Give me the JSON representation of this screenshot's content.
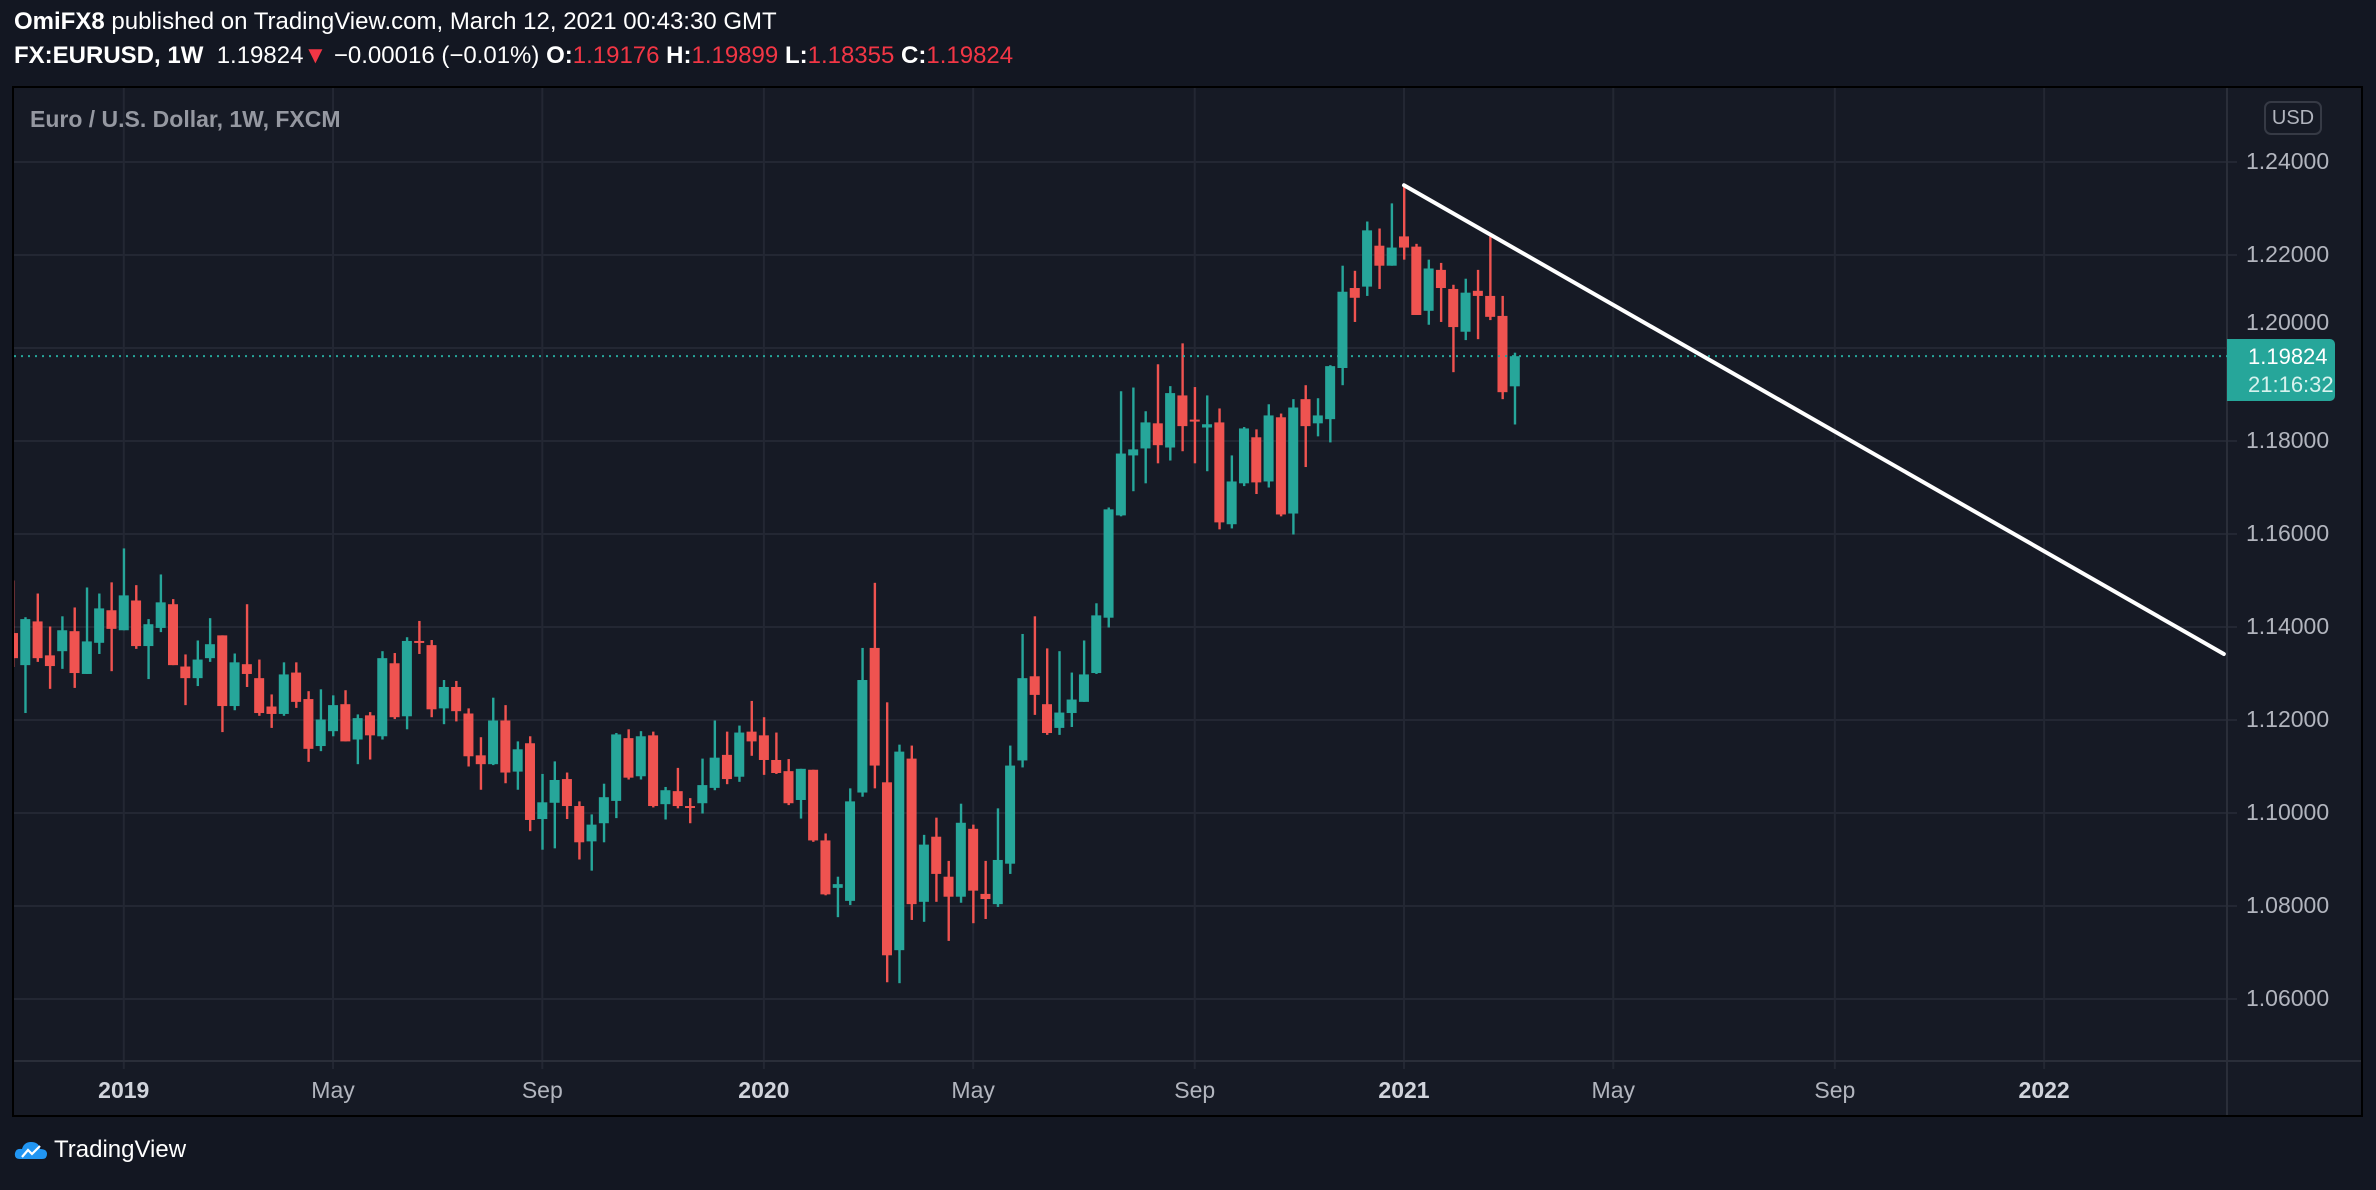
{
  "header": {
    "author": "OmiFX8",
    "published": "published on TradingView.com, March 12, 2021 00:43:30 GMT",
    "symbol": "FX:EURUSD, 1W",
    "last": "1.19824",
    "change": "−0.00016 (−0.01%)",
    "o_label": "O:",
    "o": "1.19176",
    "h_label": "H:",
    "h": "1.19899",
    "l_label": "L:",
    "l": "1.18355",
    "c_label": "C:",
    "c": "1.19824"
  },
  "legend": "Euro / U.S. Dollar, 1W, FXCM",
  "currency": "USD",
  "last_price_label": "1.19824",
  "countdown": "21:16:32",
  "brand": "TradingView",
  "colors": {
    "up": "#26a69a",
    "down": "#ef5350",
    "bg": "#161a25",
    "grid": "#232733",
    "trendline": "#ffffff"
  },
  "chart_data": {
    "type": "candlestick",
    "title": "Euro / U.S. Dollar, 1W, FXCM",
    "ylabel": "USD",
    "ylim": [
      1.05,
      1.255
    ],
    "grid": true,
    "y_ticks": [
      "1.24000",
      "1.22000",
      "1.20000",
      "1.18000",
      "1.16000",
      "1.14000",
      "1.12000",
      "1.10000",
      "1.08000",
      "1.06000"
    ],
    "x_ticks": [
      {
        "label": "2019",
        "bar": 10,
        "year": true
      },
      {
        "label": "May",
        "bar": 27
      },
      {
        "label": "Sep",
        "bar": 44
      },
      {
        "label": "2020",
        "bar": 62,
        "year": true
      },
      {
        "label": "May",
        "bar": 79
      },
      {
        "label": "Sep",
        "bar": 97
      },
      {
        "label": "2021",
        "bar": 114,
        "year": true
      },
      {
        "label": "May",
        "bar": 131
      },
      {
        "label": "Sep",
        "bar": 149
      },
      {
        "label": "2022",
        "bar": 166,
        "year": true
      }
    ],
    "last_price": 1.19824,
    "bars_ohlc": [
      [
        1.1387,
        1.15,
        1.1314,
        1.1333
      ],
      [
        1.1318,
        1.1421,
        1.1215,
        1.1417
      ],
      [
        1.1412,
        1.1472,
        1.1325,
        1.1333
      ],
      [
        1.1339,
        1.1401,
        1.1267,
        1.1316
      ],
      [
        1.1348,
        1.1423,
        1.131,
        1.1393
      ],
      [
        1.1391,
        1.1442,
        1.1269,
        1.1301
      ],
      [
        1.1299,
        1.1485,
        1.1299,
        1.1369
      ],
      [
        1.1366,
        1.1472,
        1.1342,
        1.144
      ],
      [
        1.1436,
        1.1496,
        1.1305,
        1.1396
      ],
      [
        1.1393,
        1.1569,
        1.1393,
        1.1468
      ],
      [
        1.1457,
        1.149,
        1.1353,
        1.1359
      ],
      [
        1.1359,
        1.1417,
        1.1288,
        1.1406
      ],
      [
        1.1398,
        1.1513,
        1.1389,
        1.1453
      ],
      [
        1.1449,
        1.146,
        1.1318,
        1.1318
      ],
      [
        1.1315,
        1.1341,
        1.1232,
        1.129
      ],
      [
        1.129,
        1.1371,
        1.1273,
        1.133
      ],
      [
        1.1333,
        1.1419,
        1.1325,
        1.1363
      ],
      [
        1.1382,
        1.1382,
        1.1174,
        1.123
      ],
      [
        1.123,
        1.1343,
        1.1221,
        1.1324
      ],
      [
        1.132,
        1.1449,
        1.1271,
        1.1299
      ],
      [
        1.129,
        1.133,
        1.1209,
        1.1215
      ],
      [
        1.1229,
        1.1255,
        1.1183,
        1.1213
      ],
      [
        1.1213,
        1.1324,
        1.1209,
        1.1298
      ],
      [
        1.1302,
        1.1324,
        1.1226,
        1.1239
      ],
      [
        1.1245,
        1.1262,
        1.111,
        1.1138
      ],
      [
        1.1144,
        1.1266,
        1.1133,
        1.1201
      ],
      [
        1.1176,
        1.1253,
        1.1165,
        1.1232
      ],
      [
        1.1234,
        1.1264,
        1.1154,
        1.1154
      ],
      [
        1.1158,
        1.1212,
        1.1105,
        1.1204
      ],
      [
        1.121,
        1.1217,
        1.1115,
        1.1167
      ],
      [
        1.1165,
        1.1348,
        1.1158,
        1.1333
      ],
      [
        1.1322,
        1.1344,
        1.1202,
        1.1206
      ],
      [
        1.1208,
        1.1378,
        1.118,
        1.137
      ],
      [
        1.137,
        1.1413,
        1.1342,
        1.1366
      ],
      [
        1.1361,
        1.1372,
        1.1206,
        1.1223
      ],
      [
        1.1225,
        1.1286,
        1.1191,
        1.1271
      ],
      [
        1.1271,
        1.1284,
        1.1197,
        1.1219
      ],
      [
        1.1214,
        1.1225,
        1.11,
        1.1122
      ],
      [
        1.1124,
        1.1163,
        1.105,
        1.1105
      ],
      [
        1.1105,
        1.1248,
        1.1103,
        1.1199
      ],
      [
        1.1199,
        1.1232,
        1.1064,
        1.1087
      ],
      [
        1.1089,
        1.1154,
        1.105,
        1.1137
      ],
      [
        1.115,
        1.1165,
        1.0961,
        1.0985
      ],
      [
        1.0987,
        1.1084,
        1.0921,
        1.1023
      ],
      [
        1.1022,
        1.1111,
        1.0924,
        1.1071
      ],
      [
        1.1073,
        1.1087,
        1.0987,
        1.1015
      ],
      [
        1.1015,
        1.1025,
        1.09,
        1.0937
      ],
      [
        1.0939,
        1.0997,
        1.0876,
        1.0975
      ],
      [
        1.0978,
        1.1063,
        1.0937,
        1.1034
      ],
      [
        1.1026,
        1.1172,
        1.0989,
        1.1169
      ],
      [
        1.1161,
        1.118,
        1.1072,
        1.1076
      ],
      [
        1.1079,
        1.1176,
        1.1072,
        1.1165
      ],
      [
        1.1167,
        1.1175,
        1.1012,
        1.1015
      ],
      [
        1.1019,
        1.1056,
        1.0986,
        1.1049
      ],
      [
        1.1047,
        1.1097,
        1.101,
        1.1015
      ],
      [
        1.1015,
        1.1032,
        1.0978,
        1.1012
      ],
      [
        1.1021,
        1.1117,
        1.0999,
        1.106
      ],
      [
        1.1054,
        1.1199,
        1.1049,
        1.1119
      ],
      [
        1.1125,
        1.1175,
        1.1062,
        1.1073
      ],
      [
        1.1078,
        1.1188,
        1.1067,
        1.1173
      ],
      [
        1.1175,
        1.1241,
        1.1123,
        1.1154
      ],
      [
        1.1167,
        1.1206,
        1.1082,
        1.1114
      ],
      [
        1.1114,
        1.1173,
        1.1084,
        1.1086
      ],
      [
        1.109,
        1.1116,
        1.1017,
        1.1021
      ],
      [
        1.1028,
        1.1095,
        1.0988,
        1.1095
      ],
      [
        1.1093,
        1.1093,
        1.0938,
        1.0941
      ],
      [
        1.0941,
        1.0956,
        1.0823,
        1.0825
      ],
      [
        1.0839,
        1.0863,
        1.0776,
        1.0847
      ],
      [
        1.0811,
        1.1053,
        1.0802,
        1.1025
      ],
      [
        1.1044,
        1.1355,
        1.1035,
        1.1286
      ],
      [
        1.1355,
        1.1495,
        1.1053,
        1.1102
      ],
      [
        1.1066,
        1.1238,
        1.0636,
        1.0694
      ],
      [
        1.0705,
        1.1147,
        1.0634,
        1.1132
      ],
      [
        1.1117,
        1.1145,
        1.077,
        1.0804
      ],
      [
        1.0809,
        1.0953,
        1.0766,
        1.0932
      ],
      [
        1.0949,
        1.099,
        1.0809,
        1.0869
      ],
      [
        1.0863,
        1.0897,
        1.0725,
        1.082
      ],
      [
        1.082,
        1.102,
        1.0807,
        1.0979
      ],
      [
        1.0966,
        1.0975,
        1.0763,
        1.0833
      ],
      [
        1.0826,
        1.0897,
        1.0772,
        1.0815
      ],
      [
        1.0804,
        1.101,
        1.0798,
        1.0899
      ],
      [
        1.0891,
        1.1145,
        1.0869,
        1.1102
      ],
      [
        1.1113,
        1.1385,
        1.1098,
        1.129
      ],
      [
        1.1294,
        1.1423,
        1.1211,
        1.1254
      ],
      [
        1.1234,
        1.1354,
        1.1168,
        1.1172
      ],
      [
        1.1183,
        1.1348,
        1.1168,
        1.1216
      ],
      [
        1.1215,
        1.1302,
        1.1185,
        1.1244
      ],
      [
        1.1239,
        1.1371,
        1.1239,
        1.1298
      ],
      [
        1.1301,
        1.1451,
        1.1299,
        1.1425
      ],
      [
        1.142,
        1.1657,
        1.1399,
        1.1653
      ],
      [
        1.164,
        1.1907,
        1.1638,
        1.1773
      ],
      [
        1.1769,
        1.1915,
        1.1692,
        1.1782
      ],
      [
        1.1784,
        1.1864,
        1.1709,
        1.184
      ],
      [
        1.1838,
        1.1965,
        1.1752,
        1.1791
      ],
      [
        1.1786,
        1.1918,
        1.1758,
        1.1903
      ],
      [
        1.1898,
        1.201,
        1.1778,
        1.1832
      ],
      [
        1.1846,
        1.1916,
        1.1752,
        1.1842
      ],
      [
        1.1829,
        1.1898,
        1.1735,
        1.1836
      ],
      [
        1.184,
        1.187,
        1.161,
        1.1625
      ],
      [
        1.1621,
        1.1769,
        1.1612,
        1.1713
      ],
      [
        1.1709,
        1.183,
        1.1703,
        1.1827
      ],
      [
        1.1808,
        1.1825,
        1.1686,
        1.1711
      ],
      [
        1.1713,
        1.1879,
        1.17,
        1.1855
      ],
      [
        1.1851,
        1.1859,
        1.1638,
        1.1642
      ],
      [
        1.1644,
        1.189,
        1.1599,
        1.1872
      ],
      [
        1.189,
        1.192,
        1.1744,
        1.1832
      ],
      [
        1.1838,
        1.1892,
        1.181,
        1.1855
      ],
      [
        1.1847,
        1.1963,
        1.1797,
        1.1961
      ],
      [
        1.1957,
        1.2177,
        1.192,
        1.2121
      ],
      [
        1.2129,
        1.2166,
        1.2056,
        1.2108
      ],
      [
        1.2132,
        1.2272,
        1.2112,
        1.2253
      ],
      [
        1.222,
        1.2257,
        1.2127,
        1.2177
      ],
      [
        1.2177,
        1.2311,
        1.2177,
        1.2216
      ],
      [
        1.224,
        1.235,
        1.219,
        1.2216
      ],
      [
        1.2218,
        1.2224,
        1.2071,
        1.2071
      ],
      [
        1.208,
        1.219,
        1.205,
        1.2171
      ],
      [
        1.2168,
        1.2183,
        1.2056,
        1.2129
      ],
      [
        1.2127,
        1.2136,
        1.1948,
        1.2045
      ],
      [
        1.2035,
        1.2149,
        1.2017,
        1.2119
      ],
      [
        1.2123,
        1.2168,
        1.2019,
        1.2112
      ],
      [
        1.2112,
        1.224,
        1.206,
        1.2067
      ],
      [
        1.2069,
        1.2112,
        1.189,
        1.1905
      ],
      [
        1.19176,
        1.19899,
        1.18355,
        1.19824
      ]
    ],
    "trendline": {
      "start": {
        "bar": 114,
        "price": 1.235
      },
      "end": {
        "bar": 180.6,
        "price": 1.1342
      }
    }
  }
}
